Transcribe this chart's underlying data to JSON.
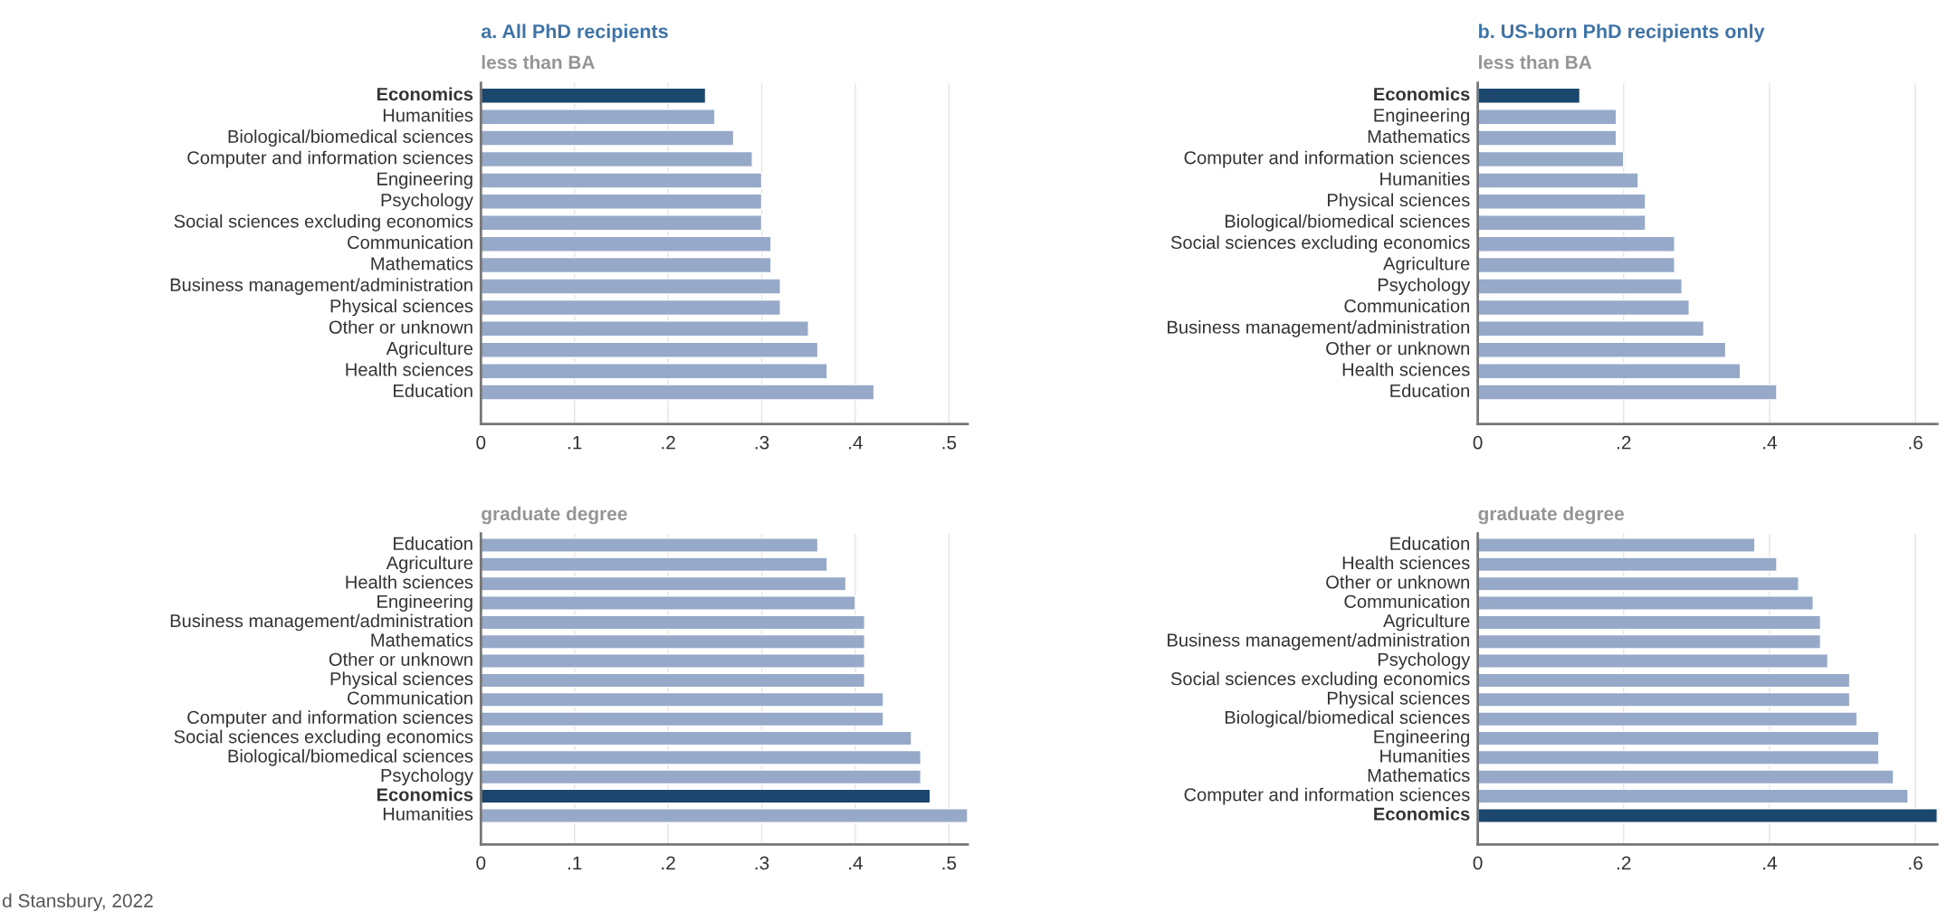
{
  "chart_data": [
    {
      "type": "bar",
      "orientation": "horizontal",
      "title": "a. All PhD recipients",
      "subtitle": "less than BA",
      "categories": [
        "Economics",
        "Humanities",
        "Biological/biomedical sciences",
        "Computer and information sciences",
        "Engineering",
        "Psychology",
        "Social sciences excluding economics",
        "Communication",
        "Mathematics",
        "Business management/administration",
        "Physical sciences",
        "Other or unknown",
        "Agriculture",
        "Health sciences",
        "Education"
      ],
      "values": [
        0.24,
        0.25,
        0.27,
        0.29,
        0.3,
        0.3,
        0.3,
        0.31,
        0.31,
        0.32,
        0.32,
        0.35,
        0.36,
        0.37,
        0.42
      ],
      "colors": [
        "#1b466e",
        "#97a9c9",
        "#97a9c9",
        "#97a9c9",
        "#97a9c9",
        "#97a9c9",
        "#97a9c9",
        "#97a9c9",
        "#97a9c9",
        "#97a9c9",
        "#97a9c9",
        "#97a9c9",
        "#97a9c9",
        "#97a9c9",
        "#97a9c9"
      ],
      "xlim": [
        0,
        0.52
      ],
      "xticks": [
        0,
        {
          "value": 0.1,
          "label": ".1"
        },
        {
          "value": 0.2,
          "label": ".2"
        },
        {
          "value": 0.3,
          "label": ".3"
        },
        {
          "value": 0.4,
          "label": ".4"
        },
        {
          "value": 0.5,
          "label": ".5"
        }
      ],
      "grid": "x"
    },
    {
      "type": "bar",
      "orientation": "horizontal",
      "title": "b. US-born PhD recipients only",
      "subtitle": "less than BA",
      "categories": [
        "Economics",
        "Engineering",
        "Mathematics",
        "Computer and information sciences",
        "Humanities",
        "Physical sciences",
        "Biological/biomedical sciences",
        "Social sciences excluding economics",
        "Agriculture",
        "Psychology",
        "Communication",
        "Business management/administration",
        "Other or unknown",
        "Health sciences",
        "Education"
      ],
      "values": [
        0.14,
        0.19,
        0.19,
        0.2,
        0.22,
        0.23,
        0.23,
        0.27,
        0.27,
        0.28,
        0.29,
        0.31,
        0.34,
        0.36,
        0.41
      ],
      "colors": [
        "#1b466e",
        "#97a9c9",
        "#97a9c9",
        "#97a9c9",
        "#97a9c9",
        "#97a9c9",
        "#97a9c9",
        "#97a9c9",
        "#97a9c9",
        "#97a9c9",
        "#97a9c9",
        "#97a9c9",
        "#97a9c9",
        "#97a9c9",
        "#97a9c9"
      ],
      "xlim": [
        0,
        0.63
      ],
      "xticks": [
        0,
        {
          "value": 0.2,
          "label": ".2"
        },
        {
          "value": 0.4,
          "label": ".4"
        },
        {
          "value": 0.6,
          "label": ".6"
        }
      ],
      "grid": "x"
    },
    {
      "type": "bar",
      "orientation": "horizontal",
      "subtitle": "graduate degree",
      "categories": [
        "Education",
        "Agriculture",
        "Health sciences",
        "Engineering",
        "Business management/administration",
        "Mathematics",
        "Other or unknown",
        "Physical sciences",
        "Communication",
        "Computer and information sciences",
        "Social sciences excluding economics",
        "Biological/biomedical sciences",
        "Psychology",
        "Economics",
        "Humanities"
      ],
      "values": [
        0.36,
        0.37,
        0.39,
        0.4,
        0.41,
        0.41,
        0.41,
        0.41,
        0.43,
        0.43,
        0.46,
        0.47,
        0.47,
        0.48,
        0.52
      ],
      "colors": [
        "#97a9c9",
        "#97a9c9",
        "#97a9c9",
        "#97a9c9",
        "#97a9c9",
        "#97a9c9",
        "#97a9c9",
        "#97a9c9",
        "#97a9c9",
        "#97a9c9",
        "#97a9c9",
        "#97a9c9",
        "#97a9c9",
        "#1b466e",
        "#97a9c9"
      ],
      "xlim": [
        0,
        0.52
      ],
      "xticks": [
        0,
        {
          "value": 0.1,
          "label": ".1"
        },
        {
          "value": 0.2,
          "label": ".2"
        },
        {
          "value": 0.3,
          "label": ".3"
        },
        {
          "value": 0.4,
          "label": ".4"
        },
        {
          "value": 0.5,
          "label": ".5"
        }
      ],
      "grid": "x",
      "annotations": [
        "d Stansbury, 2022"
      ]
    },
    {
      "type": "bar",
      "orientation": "horizontal",
      "subtitle": "graduate degree",
      "categories": [
        "Education",
        "Health sciences",
        "Other or unknown",
        "Communication",
        "Agriculture",
        "Business management/administration",
        "Psychology",
        "Social sciences excluding economics",
        "Physical sciences",
        "Biological/biomedical sciences",
        "Engineering",
        "Humanities",
        "Mathematics",
        "Computer and information sciences",
        "Economics"
      ],
      "values": [
        0.38,
        0.41,
        0.44,
        0.46,
        0.47,
        0.47,
        0.48,
        0.51,
        0.51,
        0.52,
        0.55,
        0.55,
        0.57,
        0.59,
        0.63
      ],
      "colors": [
        "#97a9c9",
        "#97a9c9",
        "#97a9c9",
        "#97a9c9",
        "#97a9c9",
        "#97a9c9",
        "#97a9c9",
        "#97a9c9",
        "#97a9c9",
        "#97a9c9",
        "#97a9c9",
        "#97a9c9",
        "#97a9c9",
        "#97a9c9",
        "#1b466e"
      ],
      "xlim": [
        0,
        0.63
      ],
      "xticks": [
        0,
        {
          "value": 0.2,
          "label": ".2"
        },
        {
          "value": 0.4,
          "label": ".4"
        },
        {
          "value": 0.6,
          "label": ".6"
        }
      ],
      "grid": "x"
    }
  ]
}
